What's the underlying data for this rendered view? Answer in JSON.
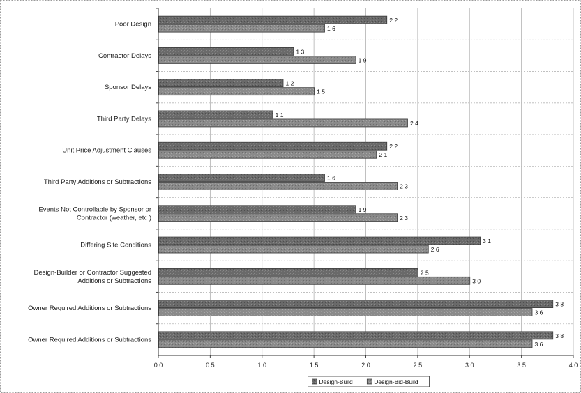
{
  "chart_data": {
    "type": "bar",
    "orientation": "horizontal",
    "categories": [
      "Poor Design",
      "Contractor Delays",
      "Sponsor Delays",
      "Third Party Delays",
      "Unit Price Adjustment Clauses",
      "Third Party Additions or Subtractions",
      "Events Not Controllable by Sponsor or Contractor (weather, etc )",
      "Differing Site Conditions",
      "Design-Builder or Contractor Suggested Additions or Subtractions",
      "Owner Required Additions or Subtractions",
      "Owner Required Additions or Subtractions"
    ],
    "category_lines": [
      [
        "Poor Design"
      ],
      [
        "Contractor Delays"
      ],
      [
        "Sponsor Delays"
      ],
      [
        "Third Party Delays"
      ],
      [
        "Unit Price Adjustment Clauses"
      ],
      [
        "Third Party Additions or Subtractions"
      ],
      [
        "Events Not Controllable by Sponsor or",
        "Contractor (weather, etc )"
      ],
      [
        "Differing Site Conditions"
      ],
      [
        "Design-Builder or Contractor Suggested",
        "Additions or Subtractions"
      ],
      [
        "Owner Required Additions or Subtractions"
      ],
      [
        "Owner Required Additions or Subtractions"
      ]
    ],
    "series": [
      {
        "name": "Design-Build",
        "values": [
          2.2,
          1.3,
          1.2,
          1.1,
          2.2,
          1.6,
          1.9,
          3.1,
          2.5,
          3.8,
          3.8
        ],
        "value_labels": [
          "2 2",
          "1 3",
          "1 2",
          "1 1",
          "2 2",
          "1 6",
          "1 9",
          "3 1",
          "2 5",
          "3 8",
          "3 8"
        ],
        "color": "#6e6e6e"
      },
      {
        "name": "Design-Bid-Build",
        "values": [
          1.6,
          1.9,
          1.5,
          2.4,
          2.1,
          2.3,
          2.3,
          2.6,
          3.0,
          3.6,
          3.6
        ],
        "value_labels": [
          "1 6",
          "1 9",
          "1 5",
          "2 4",
          "2 1",
          "2 3",
          "2 3",
          "2 6",
          "3 0",
          "3 6",
          "3 6"
        ],
        "color": "#8c8c8c"
      }
    ],
    "xlim": [
      0,
      4.0
    ],
    "x_ticks": [
      0,
      0.5,
      1.0,
      1.5,
      2.0,
      2.5,
      3.0,
      3.5,
      4.0
    ],
    "x_tick_labels": [
      "0 0",
      "0 5",
      "1 0",
      "1 5",
      "2 0",
      "2 5",
      "3 0",
      "3 5",
      "4 0"
    ],
    "title": "",
    "xlabel": "",
    "ylabel": "",
    "grid": true,
    "legend_position": "bottom"
  }
}
